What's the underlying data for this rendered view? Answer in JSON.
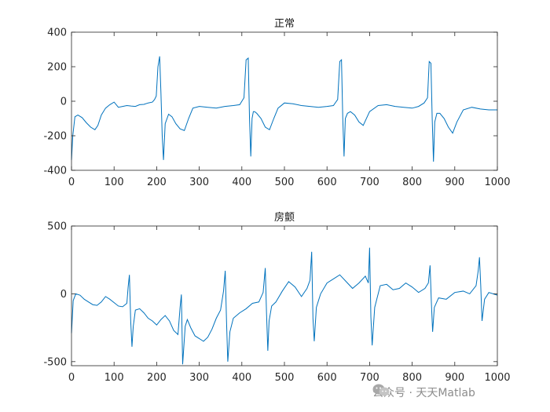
{
  "chart_data": [
    {
      "type": "line",
      "title": "正常",
      "xlabel": "",
      "ylabel": "",
      "xlim": [
        0,
        1000
      ],
      "ylim": [
        -400,
        400
      ],
      "xticks": [
        0,
        100,
        200,
        300,
        400,
        500,
        600,
        700,
        800,
        900,
        1000
      ],
      "yticks": [
        -400,
        -200,
        0,
        200,
        400
      ],
      "grid": false,
      "line_color": "#0072BD",
      "series": [
        {
          "x": [
            0,
            3,
            8,
            15,
            25,
            35,
            45,
            55,
            62,
            70,
            80,
            90,
            100,
            110,
            120,
            130,
            140,
            150,
            160,
            170,
            180,
            190,
            195,
            199,
            203,
            207,
            210,
            213,
            216,
            220,
            228,
            236,
            245,
            255,
            265,
            275,
            285,
            300,
            320,
            340,
            360,
            380,
            395,
            405,
            410,
            415,
            418,
            421,
            424,
            427,
            430,
            435,
            445,
            455,
            465,
            475,
            485,
            500,
            520,
            540,
            560,
            580,
            600,
            615,
            625,
            630,
            634,
            637,
            640,
            643,
            648,
            655,
            665,
            675,
            685,
            700,
            720,
            740,
            760,
            780,
            800,
            815,
            828,
            836,
            840,
            844,
            847,
            850,
            853,
            858,
            865,
            875,
            885,
            895,
            905,
            920,
            940,
            960,
            980,
            1000
          ],
          "y": [
            -340,
            -200,
            -90,
            -80,
            -95,
            -125,
            -150,
            -165,
            -140,
            -80,
            -40,
            -20,
            -5,
            -35,
            -30,
            -25,
            -28,
            -30,
            -20,
            -18,
            -10,
            -5,
            10,
            30,
            200,
            260,
            50,
            -200,
            -340,
            -130,
            -75,
            -90,
            -130,
            -160,
            -170,
            -100,
            -40,
            -30,
            -35,
            -40,
            -30,
            -25,
            -20,
            20,
            240,
            250,
            -100,
            -320,
            -100,
            -60,
            -60,
            -70,
            -100,
            -150,
            -165,
            -100,
            -40,
            -10,
            -15,
            -25,
            -30,
            -35,
            -30,
            -25,
            10,
            230,
            240,
            -100,
            -320,
            -100,
            -70,
            -60,
            -80,
            -120,
            -140,
            -60,
            -25,
            -20,
            -30,
            -35,
            -40,
            -30,
            -10,
            20,
            230,
            220,
            -100,
            -350,
            -120,
            -70,
            -70,
            -100,
            -150,
            -185,
            -120,
            -50,
            -35,
            -45,
            -50,
            -50
          ]
        }
      ]
    },
    {
      "type": "line",
      "title": "房颤",
      "xlabel": "",
      "ylabel": "",
      "xlim": [
        0,
        1000
      ],
      "ylim": [
        -530,
        500
      ],
      "xticks": [
        0,
        100,
        200,
        300,
        400,
        500,
        600,
        700,
        800,
        900,
        1000
      ],
      "yticks": [
        -500,
        0,
        500
      ],
      "grid": false,
      "line_color": "#0072BD",
      "series": [
        {
          "x": [
            0,
            4,
            10,
            20,
            30,
            40,
            50,
            60,
            70,
            80,
            90,
            100,
            110,
            120,
            130,
            133,
            136,
            139,
            142,
            145,
            150,
            160,
            170,
            180,
            190,
            200,
            210,
            220,
            230,
            240,
            250,
            255,
            258,
            261,
            264,
            267,
            272,
            280,
            290,
            300,
            310,
            320,
            330,
            340,
            350,
            357,
            361,
            364,
            367,
            372,
            380,
            395,
            410,
            425,
            440,
            450,
            455,
            458,
            461,
            464,
            470,
            480,
            495,
            510,
            525,
            540,
            553,
            560,
            564,
            567,
            570,
            575,
            585,
            600,
            615,
            630,
            645,
            660,
            675,
            690,
            697,
            700,
            703,
            706,
            712,
            725,
            740,
            755,
            770,
            785,
            800,
            815,
            830,
            838,
            842,
            845,
            848,
            852,
            862,
            880,
            900,
            920,
            935,
            950,
            955,
            958,
            961,
            964,
            970,
            980,
            990,
            1000
          ],
          "y": [
            -290,
            -50,
            0,
            -10,
            -40,
            -60,
            -80,
            -85,
            -60,
            -20,
            -40,
            -65,
            -90,
            -95,
            -70,
            50,
            140,
            -200,
            -390,
            -240,
            -120,
            -110,
            -140,
            -180,
            -200,
            -230,
            -190,
            -160,
            -200,
            -270,
            -300,
            -100,
            -5,
            -520,
            -380,
            -240,
            -190,
            -250,
            -310,
            -330,
            -350,
            -320,
            -260,
            -180,
            -120,
            20,
            170,
            -200,
            -500,
            -280,
            -180,
            -140,
            -110,
            -70,
            -60,
            10,
            190,
            -150,
            -420,
            -200,
            -90,
            -60,
            20,
            90,
            50,
            -20,
            40,
            100,
            310,
            -180,
            -350,
            -100,
            0,
            80,
            110,
            140,
            90,
            40,
            80,
            130,
            80,
            340,
            -170,
            -380,
            -100,
            60,
            70,
            30,
            40,
            80,
            50,
            10,
            40,
            80,
            210,
            -60,
            -280,
            -100,
            -30,
            -40,
            10,
            20,
            0,
            60,
            170,
            270,
            60,
            -200,
            -40,
            10,
            0,
            -10
          ]
        }
      ]
    }
  ],
  "watermark": {
    "text": "公众号 · 天天Matlab",
    "icon": "wechat-icon"
  }
}
